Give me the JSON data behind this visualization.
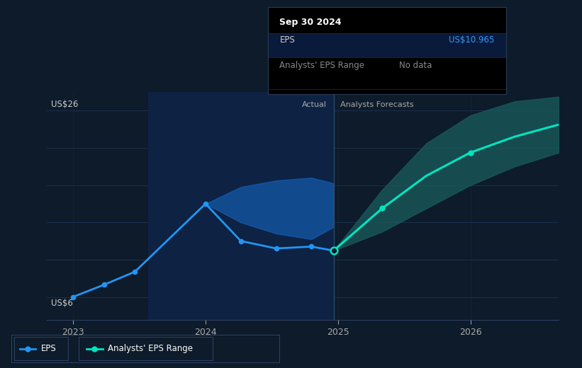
{
  "bg_color": "#0d1b2a",
  "plot_bg_color": "#0d1b2a",
  "grid_color": "#1e3050",
  "eps_color": "#2196f3",
  "eps_range_fill_color": "#1565c0",
  "forecast_line_color": "#00e5c0",
  "forecast_range_color": "#1a5c5c",
  "highlight_bg_color": "#0e2244",
  "divider_color": "#2a4a6a",
  "actual_label": "Actual",
  "forecast_label": "Analysts Forecasts",
  "tooltip_date": "Sep 30 2024",
  "tooltip_eps_label": "EPS",
  "tooltip_eps_value": "US$10.965",
  "tooltip_eps_value_color": "#3399ff",
  "tooltip_range_label": "Analysts' EPS Range",
  "tooltip_range_value": "No data",
  "legend_eps_label": "EPS",
  "legend_range_label": "Analysts' EPS Range",
  "ylabel_top": "US$26",
  "ylabel_bottom": "US$6",
  "x_labels": [
    "2023",
    "2024",
    "2025",
    "2026"
  ],
  "x_tick_pos": [
    0.0,
    1.5,
    3.0,
    4.5
  ],
  "xmin": -0.3,
  "xmax": 5.5,
  "ymin": 3.5,
  "ymax": 28.0,
  "highlight_start": 0.85,
  "highlight_end": 2.95,
  "divider_x": 2.95,
  "actual_eps_x": [
    0.0,
    0.35,
    0.7,
    1.5,
    1.9,
    2.3,
    2.7,
    2.95
  ],
  "actual_eps_y": [
    6.0,
    7.3,
    8.7,
    16.0,
    12.0,
    11.2,
    11.4,
    10.965
  ],
  "actual_range_x": [
    1.5,
    1.9,
    2.3,
    2.7,
    2.95
  ],
  "actual_range_upper_y": [
    16.0,
    17.8,
    18.5,
    18.8,
    18.2
  ],
  "actual_range_lower_y": [
    16.0,
    14.0,
    12.8,
    12.2,
    13.5
  ],
  "forecast_eps_x": [
    2.95,
    3.5,
    4.0,
    4.5,
    5.0,
    5.5
  ],
  "forecast_eps_y": [
    10.965,
    15.5,
    19.0,
    21.5,
    23.2,
    24.5
  ],
  "forecast_upper_x": [
    2.95,
    3.5,
    4.0,
    4.5,
    5.0,
    5.5
  ],
  "forecast_upper_y": [
    10.965,
    17.5,
    22.5,
    25.5,
    27.0,
    27.5
  ],
  "forecast_lower_x": [
    2.95,
    3.5,
    4.0,
    4.5,
    5.0,
    5.5
  ],
  "forecast_lower_y": [
    10.965,
    13.0,
    15.5,
    18.0,
    20.0,
    21.5
  ],
  "forecast_dot_indices": [
    1,
    3
  ]
}
